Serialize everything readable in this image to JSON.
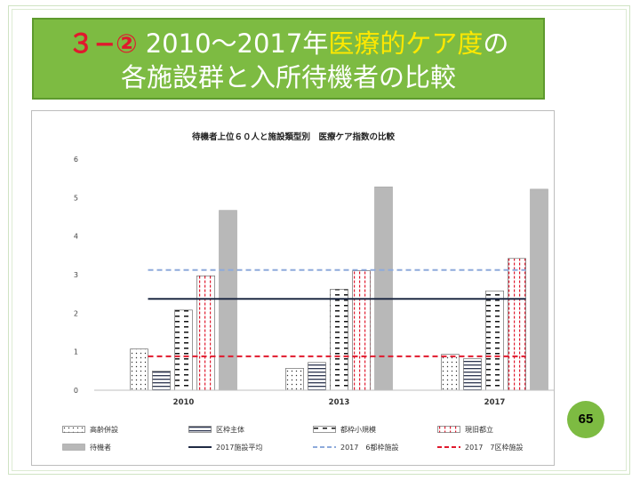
{
  "slide": {
    "title_prefix": "３−②",
    "title_mid": " 2010〜2017年",
    "title_highlight": "医療的ケア度",
    "title_suffix": "の",
    "title_line2": "各施設群と入所待機者の比較",
    "page_number": "65"
  },
  "colors": {
    "title_bg": "#7dbb42",
    "accent_red": "#e0192d",
    "accent_yellow": "#ffe800",
    "avg_line": "#1f2a44",
    "metro_line": "#8eaadb",
    "ward_line": "#e0192d",
    "waiting_bar": "#b8b8b8"
  },
  "chart_data": {
    "type": "bar",
    "title": "待機者上位６０人と施設類型別　医療ケア指数の比較",
    "categories": [
      "2010",
      "2013",
      "2017"
    ],
    "ylim": [
      0,
      6
    ],
    "yticks": [
      "0",
      "1",
      "2",
      "3",
      "4",
      "5",
      "6"
    ],
    "grid": false,
    "legend_position": "bottom",
    "series": [
      {
        "name": "高齢併設",
        "pattern": "dots",
        "values": [
          1.07,
          0.57,
          0.93
        ]
      },
      {
        "name": "区枠主体",
        "pattern": "hlines",
        "values": [
          0.5,
          0.72,
          0.82
        ]
      },
      {
        "name": "都枠小規模",
        "pattern": "dashes",
        "values": [
          2.08,
          2.62,
          2.58
        ]
      },
      {
        "name": "現旧都立",
        "pattern": "red-dots",
        "values": [
          2.97,
          3.1,
          3.42
        ]
      },
      {
        "name": "待機者",
        "pattern": "solid-gray",
        "values": [
          4.67,
          5.28,
          5.22
        ]
      }
    ],
    "reference_lines": [
      {
        "name": "2017施設平均",
        "value": 2.37,
        "style": "solid",
        "color": "#1f2a44"
      },
      {
        "name": "2017　6都枠施設",
        "value": 3.12,
        "style": "dashed",
        "color": "#8eaadb"
      },
      {
        "name": "2017　7区枠施設",
        "value": 0.88,
        "style": "dashed",
        "color": "#e0192d"
      }
    ]
  }
}
